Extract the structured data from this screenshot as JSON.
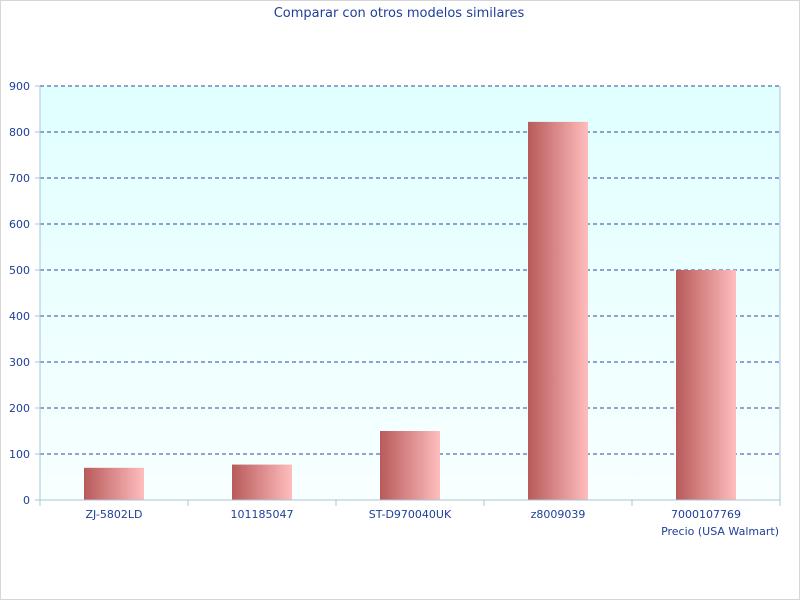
{
  "chart_data": {
    "type": "bar",
    "title": "Comparar con otros modelos similares",
    "xlabel": "Precio (USA Walmart)",
    "ylabel": "",
    "categories": [
      "ZJ-5802LD",
      "101185047",
      "ST-D970040UK",
      "z8009039",
      "7000107769"
    ],
    "values": [
      70,
      77,
      150,
      822,
      500
    ],
    "ylim": [
      0,
      900
    ],
    "yticks": [
      0,
      100,
      200,
      300,
      400,
      500,
      600,
      700,
      800,
      900
    ],
    "grid": true,
    "legend": "none",
    "colors": {
      "bar_dark": "#b85a5a",
      "bar_light": "#ffbdbd",
      "plot_bg_top": "#e0ffff",
      "plot_bg_bottom": "#f8ffff",
      "grid": "#2b4a9e",
      "text": "#1f3f99",
      "axis": "#a9c4d6"
    }
  }
}
